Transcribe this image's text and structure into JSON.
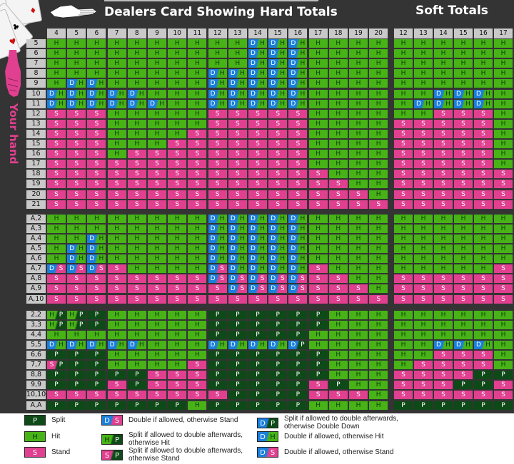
{
  "header": {
    "dealer_title": "Dealers Card Showing",
    "hard_title": "Hard Totals",
    "soft_title": "Soft Totals",
    "your_hand_label": "Your hand"
  },
  "colors": {
    "hit": "#47b316",
    "stand": "#e0408f",
    "split": "#0e4a17",
    "double": "#1a7fdc",
    "background": "#343434",
    "header_cell": "#c9c9c9"
  },
  "hard_columns": [
    "4",
    "5",
    "6",
    "7",
    "8",
    "9",
    "10",
    "11",
    "12",
    "13",
    "14",
    "15",
    "16",
    "17",
    "18",
    "19",
    "20"
  ],
  "soft_columns": [
    "12",
    "13",
    "14",
    "15",
    "16",
    "17"
  ],
  "sections": [
    {
      "name": "hard-hands",
      "rows": [
        {
          "label": "5",
          "hard": [
            "H",
            "H",
            "H",
            "H",
            "H",
            "H",
            "H",
            "H",
            "H",
            "H",
            "D/H",
            "D/H",
            "D/H",
            "H",
            "H",
            "H",
            "H"
          ],
          "soft": [
            "H",
            "H",
            "H",
            "H",
            "H",
            "H"
          ]
        },
        {
          "label": "6",
          "hard": [
            "H",
            "H",
            "H",
            "H",
            "H",
            "H",
            "H",
            "H",
            "H",
            "H",
            "D/H",
            "D/H",
            "D/H",
            "H",
            "H",
            "H",
            "H"
          ],
          "soft": [
            "H",
            "H",
            "H",
            "H",
            "H",
            "H"
          ]
        },
        {
          "label": "7",
          "hard": [
            "H",
            "H",
            "H",
            "H",
            "H",
            "H",
            "H",
            "H",
            "H",
            "H",
            "D/H",
            "D/H",
            "D/H",
            "H",
            "H",
            "H",
            "H"
          ],
          "soft": [
            "H",
            "H",
            "H",
            "H",
            "H",
            "H"
          ]
        },
        {
          "label": "8",
          "hard": [
            "H",
            "H",
            "H",
            "H",
            "H",
            "H",
            "H",
            "H",
            "D/H",
            "D/H",
            "D/H",
            "D/H",
            "D/H",
            "H",
            "H",
            "H",
            "H"
          ],
          "soft": [
            "H",
            "H",
            "H",
            "H",
            "H",
            "H"
          ]
        },
        {
          "label": "9",
          "hard": [
            "H",
            "D/H",
            "D/H",
            "H",
            "H",
            "H",
            "H",
            "H",
            "D/H",
            "D/H",
            "D/H",
            "D/H",
            "D/H",
            "H",
            "H",
            "H",
            "H"
          ],
          "soft": [
            "H",
            "H",
            "H",
            "H",
            "H",
            "H"
          ]
        },
        {
          "label": "10",
          "hard": [
            "D/H",
            "D/H",
            "D/H",
            "D/H",
            "D/H",
            "H",
            "H",
            "H",
            "D/H",
            "D/H",
            "D/H",
            "D/H",
            "D/H",
            "H",
            "H",
            "H",
            "H"
          ],
          "soft": [
            "H",
            "H",
            "D/H",
            "D/H",
            "D/H",
            "H"
          ]
        },
        {
          "label": "11",
          "hard": [
            "D/H",
            "D/H",
            "D/H",
            "D/H",
            "D/H",
            "D/H",
            "H",
            "H",
            "D/H",
            "D/H",
            "D/H",
            "D/H",
            "D/H",
            "H",
            "H",
            "H",
            "H"
          ],
          "soft": [
            "H",
            "D/H",
            "D/H",
            "D/H",
            "D/H",
            "H"
          ]
        },
        {
          "label": "12",
          "hard": [
            "S",
            "S",
            "S",
            "H",
            "H",
            "H",
            "H",
            "H",
            "S",
            "S",
            "S",
            "S",
            "S",
            "H",
            "H",
            "H",
            "H"
          ],
          "soft": [
            "H",
            "H",
            "S",
            "S",
            "S",
            "H"
          ]
        },
        {
          "label": "13",
          "hard": [
            "S",
            "S",
            "S",
            "H",
            "H",
            "H",
            "H",
            "H",
            "S",
            "S",
            "S",
            "S",
            "S",
            "H",
            "H",
            "H",
            "H"
          ],
          "soft": [
            "S",
            "S",
            "S",
            "S",
            "S",
            "H"
          ]
        },
        {
          "label": "14",
          "hard": [
            "S",
            "S",
            "S",
            "H",
            "H",
            "H",
            "H",
            "S",
            "S",
            "S",
            "S",
            "S",
            "S",
            "H",
            "H",
            "H",
            "H"
          ],
          "soft": [
            "S",
            "S",
            "S",
            "S",
            "S",
            "H"
          ]
        },
        {
          "label": "15",
          "hard": [
            "S",
            "S",
            "S",
            "H",
            "H",
            "H",
            "S",
            "S",
            "S",
            "S",
            "S",
            "S",
            "S",
            "H",
            "H",
            "H",
            "H"
          ],
          "soft": [
            "S",
            "S",
            "S",
            "S",
            "S",
            "H"
          ]
        },
        {
          "label": "16",
          "hard": [
            "S",
            "S",
            "S",
            "H",
            "S",
            "S",
            "S",
            "S",
            "S",
            "S",
            "S",
            "S",
            "S",
            "H",
            "H",
            "H",
            "H"
          ],
          "soft": [
            "S",
            "S",
            "S",
            "S",
            "S",
            "H"
          ]
        },
        {
          "label": "17",
          "hard": [
            "S",
            "S",
            "S",
            "S",
            "S",
            "S",
            "S",
            "S",
            "S",
            "S",
            "S",
            "S",
            "S",
            "H",
            "H",
            "H",
            "H"
          ],
          "soft": [
            "S",
            "S",
            "S",
            "S",
            "S",
            "H"
          ]
        },
        {
          "label": "18",
          "hard": [
            "S",
            "S",
            "S",
            "S",
            "S",
            "S",
            "S",
            "S",
            "S",
            "S",
            "S",
            "S",
            "S",
            "S",
            "H",
            "H",
            "H"
          ],
          "soft": [
            "S",
            "S",
            "S",
            "S",
            "S",
            "S"
          ]
        },
        {
          "label": "19",
          "hard": [
            "S",
            "S",
            "S",
            "S",
            "S",
            "S",
            "S",
            "S",
            "S",
            "S",
            "S",
            "S",
            "S",
            "S",
            "S",
            "H",
            "H"
          ],
          "soft": [
            "S",
            "S",
            "S",
            "S",
            "S",
            "S"
          ]
        },
        {
          "label": "20",
          "hard": [
            "S",
            "S",
            "S",
            "S",
            "S",
            "S",
            "S",
            "S",
            "S",
            "S",
            "S",
            "S",
            "S",
            "S",
            "S",
            "S",
            "H"
          ],
          "soft": [
            "S",
            "S",
            "S",
            "S",
            "S",
            "S"
          ]
        },
        {
          "label": "21",
          "hard": [
            "S",
            "S",
            "S",
            "S",
            "S",
            "S",
            "S",
            "S",
            "S",
            "S",
            "S",
            "S",
            "S",
            "S",
            "S",
            "S",
            "S"
          ],
          "soft": [
            "S",
            "S",
            "S",
            "S",
            "S",
            "S"
          ]
        }
      ]
    },
    {
      "name": "soft-hands",
      "rows": [
        {
          "label": "A,2",
          "hard": [
            "H",
            "H",
            "H",
            "H",
            "H",
            "H",
            "H",
            "H",
            "D/H",
            "D/H",
            "D/H",
            "D/H",
            "D/H",
            "H",
            "H",
            "H",
            "H"
          ],
          "soft": [
            "H",
            "H",
            "H",
            "H",
            "H",
            "H"
          ]
        },
        {
          "label": "A,3",
          "hard": [
            "H",
            "H",
            "H",
            "H",
            "H",
            "H",
            "H",
            "H",
            "D/H",
            "D/H",
            "D/H",
            "D/H",
            "D/H",
            "H",
            "H",
            "H",
            "H"
          ],
          "soft": [
            "H",
            "H",
            "H",
            "H",
            "H",
            "H"
          ]
        },
        {
          "label": "A,4",
          "hard": [
            "H",
            "H",
            "D/H",
            "H",
            "H",
            "H",
            "H",
            "H",
            "D/H",
            "D/H",
            "D/H",
            "D/H",
            "D/H",
            "H",
            "H",
            "H",
            "H"
          ],
          "soft": [
            "H",
            "H",
            "H",
            "H",
            "H",
            "H"
          ]
        },
        {
          "label": "A,5",
          "hard": [
            "H",
            "D/H",
            "D/H",
            "H",
            "H",
            "H",
            "H",
            "H",
            "D/H",
            "D/H",
            "D/H",
            "D/H",
            "D/H",
            "H",
            "H",
            "H",
            "H"
          ],
          "soft": [
            "H",
            "H",
            "H",
            "H",
            "H",
            "H"
          ]
        },
        {
          "label": "A,6",
          "hard": [
            "H",
            "D/H",
            "D/H",
            "H",
            "H",
            "H",
            "H",
            "H",
            "D/H",
            "D/H",
            "D/H",
            "D/H",
            "D/H",
            "H",
            "H",
            "H",
            "H"
          ],
          "soft": [
            "H",
            "H",
            "H",
            "H",
            "H",
            "H"
          ]
        },
        {
          "label": "A,7",
          "hard": [
            "D/S",
            "D/S",
            "D/S",
            "S",
            "H",
            "H",
            "H",
            "H",
            "D/S",
            "D/H",
            "D/H",
            "D/H",
            "D/H",
            "S",
            "H",
            "H",
            "H"
          ],
          "soft": [
            "H",
            "H",
            "H",
            "H",
            "H",
            "S"
          ]
        },
        {
          "label": "A,8",
          "hard": [
            "S",
            "S",
            "S",
            "S",
            "S",
            "S",
            "S",
            "S",
            "D/S",
            "D/S",
            "D/S",
            "D/S",
            "D/S",
            "S",
            "S",
            "H",
            "H"
          ],
          "soft": [
            "S",
            "S",
            "S",
            "S",
            "S",
            "S"
          ]
        },
        {
          "label": "A,9",
          "hard": [
            "S",
            "S",
            "S",
            "S",
            "S",
            "S",
            "S",
            "S",
            "S",
            "D/S",
            "D/S",
            "D/S",
            "D/S",
            "S",
            "S",
            "S",
            "H"
          ],
          "soft": [
            "S",
            "S",
            "S",
            "S",
            "S",
            "S"
          ]
        },
        {
          "label": "A,10",
          "hard": [
            "S",
            "S",
            "S",
            "S",
            "S",
            "S",
            "S",
            "S",
            "S",
            "S",
            "S",
            "S",
            "S",
            "S",
            "S",
            "S",
            "S"
          ],
          "soft": [
            "S",
            "S",
            "S",
            "S",
            "S",
            "S"
          ]
        }
      ]
    },
    {
      "name": "pairs",
      "rows": [
        {
          "label": "2,2",
          "hard": [
            "H/P",
            "H/P",
            "P",
            "H",
            "H",
            "H",
            "H",
            "H",
            "P",
            "P",
            "P",
            "P",
            "P",
            "P",
            "H",
            "H",
            "H"
          ],
          "soft": [
            "H",
            "H",
            "H",
            "H",
            "H",
            "H"
          ]
        },
        {
          "label": "3,3",
          "hard": [
            "H/P",
            "H/P",
            "P",
            "H",
            "H",
            "H",
            "H",
            "H",
            "P",
            "P",
            "P",
            "P",
            "P",
            "P",
            "H",
            "H",
            "H"
          ],
          "soft": [
            "H",
            "H",
            "H",
            "H",
            "H",
            "H"
          ]
        },
        {
          "label": "4,4",
          "hard": [
            "H",
            "H",
            "H",
            "H",
            "H",
            "H",
            "H",
            "H",
            "P",
            "P",
            "P",
            "P",
            "P",
            "H",
            "H",
            "H",
            "H"
          ],
          "soft": [
            "H",
            "H",
            "H",
            "H",
            "H",
            "H"
          ]
        },
        {
          "label": "5,5",
          "hard": [
            "D/H",
            "D/H",
            "D/H",
            "D/H",
            "D/H",
            "H",
            "H",
            "H",
            "D/H",
            "D/H",
            "D/H",
            "D/H",
            "D/P",
            "H",
            "H",
            "H",
            "H"
          ],
          "soft": [
            "H",
            "H",
            "D/H",
            "D/H",
            "D/H",
            "H"
          ]
        },
        {
          "label": "6,6",
          "hard": [
            "P",
            "P",
            "P",
            "H",
            "H",
            "H",
            "H",
            "H",
            "P",
            "P",
            "P",
            "P",
            "P",
            "P",
            "H",
            "H",
            "H"
          ],
          "soft": [
            "H",
            "H",
            "S",
            "S",
            "S",
            "H"
          ]
        },
        {
          "label": "7,7",
          "hard": [
            "S/P",
            "P",
            "P",
            "H",
            "H",
            "H",
            "H",
            "S",
            "P",
            "P",
            "P",
            "P",
            "P",
            "P",
            "H",
            "H",
            "H"
          ],
          "soft": [
            "H",
            "S",
            "S",
            "S",
            "S",
            "H"
          ]
        },
        {
          "label": "8,8",
          "hard": [
            "P",
            "P",
            "P",
            "P",
            "P",
            "S",
            "S",
            "S",
            "P",
            "P",
            "P",
            "P",
            "P",
            "P",
            "H",
            "H",
            "H"
          ],
          "soft": [
            "S",
            "S",
            "S",
            "S",
            "P",
            "P"
          ]
        },
        {
          "label": "9,9",
          "hard": [
            "P",
            "P",
            "P",
            "S",
            "P",
            "S",
            "S",
            "S",
            "P",
            "P",
            "P",
            "P",
            "P",
            "S",
            "P",
            "H",
            "H"
          ],
          "soft": [
            "S",
            "S",
            "S",
            "P",
            "P",
            "S"
          ]
        },
        {
          "label": "10,10",
          "hard": [
            "S",
            "S",
            "S",
            "S",
            "S",
            "S",
            "S",
            "S",
            "S",
            "P",
            "P",
            "P",
            "P",
            "S",
            "S",
            "S",
            "H"
          ],
          "soft": [
            "S",
            "S",
            "S",
            "S",
            "S",
            "S"
          ]
        },
        {
          "label": "A,A",
          "hard": [
            "P",
            "P",
            "P",
            "P",
            "P",
            "P",
            "P",
            "H",
            "P",
            "P",
            "P",
            "P",
            "P",
            "H",
            "H",
            "H",
            "H"
          ],
          "soft": [
            "P",
            "P",
            "P",
            "P",
            "P",
            "P"
          ]
        }
      ]
    }
  ],
  "legend": [
    {
      "code": "P",
      "text": "Split"
    },
    {
      "code": "H",
      "text": "Hit"
    },
    {
      "code": "S",
      "text": "Stand"
    },
    {
      "code": "D/S",
      "text": "Double if allowed, otherwise Stand"
    },
    {
      "code": "H/P",
      "text": "Split if allowed to double afterwards, otherwise Hit"
    },
    {
      "code": "S/P",
      "text": "Split if allowed to double afterwards, otherwise Stand"
    },
    {
      "code": "D/P",
      "text": "Split if allowed to double afterwards, otherwise Double Down"
    },
    {
      "code": "D/H",
      "text": "Double if allowed, otherwise Hit"
    },
    {
      "code": "D/S",
      "text": "Double if allowed, otherwise Stand"
    }
  ]
}
